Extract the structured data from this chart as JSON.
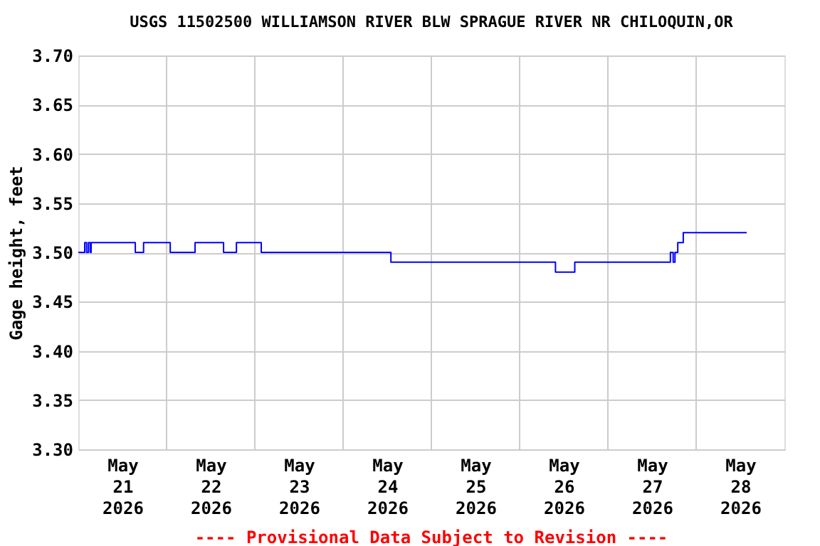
{
  "chart_data": {
    "type": "step",
    "title": "USGS 11502500 WILLIAMSON RIVER BLW SPRAGUE RIVER NR CHILOQUIN,OR",
    "ylabel": "Gage height, feet",
    "annotations": [
      "---- Provisional Data Subject to Revision ----"
    ],
    "x": [
      "2026-05-21T00:00",
      "2026-05-21T01:45",
      "2026-05-21T02:15",
      "2026-05-21T02:45",
      "2026-05-21T03:15",
      "2026-05-21T03:30",
      "2026-05-21T15:30",
      "2026-05-21T17:45",
      "2026-05-22T01:00",
      "2026-05-22T07:45",
      "2026-05-22T15:30",
      "2026-05-22T19:00",
      "2026-05-23T01:45",
      "2026-05-24T13:00",
      "2026-05-26T09:45",
      "2026-05-26T15:00",
      "2026-05-27T17:00",
      "2026-05-27T17:45",
      "2026-05-27T18:15",
      "2026-05-27T19:00",
      "2026-05-27T20:30",
      "2026-05-28T13:45"
    ],
    "series": [
      {
        "color": "#0000ff",
        "values": [
          3.5,
          3.51,
          3.5,
          3.51,
          3.5,
          3.51,
          3.5,
          3.51,
          3.5,
          3.51,
          3.5,
          3.51,
          3.5,
          3.49,
          3.48,
          3.49,
          3.5,
          3.49,
          3.5,
          3.51,
          3.52,
          3.52
        ]
      }
    ],
    "xlim": [
      "2026-05-21T00:00",
      "2026-05-29T00:00"
    ],
    "xticks": [
      {
        "value": "2026-05-21T12:00",
        "label": "May\n21\n2026"
      },
      {
        "value": "2026-05-22T12:00",
        "label": "May\n22\n2026"
      },
      {
        "value": "2026-05-23T12:00",
        "label": "May\n23\n2026"
      },
      {
        "value": "2026-05-24T12:00",
        "label": "May\n24\n2026"
      },
      {
        "value": "2026-05-25T12:00",
        "label": "May\n25\n2026"
      },
      {
        "value": "2026-05-26T12:00",
        "label": "May\n26\n2026"
      },
      {
        "value": "2026-05-27T12:00",
        "label": "May\n27\n2026"
      },
      {
        "value": "2026-05-28T12:00",
        "label": "May\n28\n2026"
      },
      {
        "value": "2026-05-22T00:00",
        "label": null
      },
      {
        "value": "2026-05-23T00:00",
        "label": null
      },
      {
        "value": "2026-05-24T00:00",
        "label": null
      },
      {
        "value": "2026-05-25T00:00",
        "label": null
      },
      {
        "value": "2026-05-26T00:00",
        "label": null
      },
      {
        "value": "2026-05-27T00:00",
        "label": null
      },
      {
        "value": "2026-05-28T00:00",
        "label": null
      }
    ],
    "ylim": [
      3.3,
      3.7
    ],
    "yticks": [
      {
        "value": 3.3,
        "label": "3.30"
      },
      {
        "value": 3.35,
        "label": "3.35"
      },
      {
        "value": 3.4,
        "label": "3.40"
      },
      {
        "value": 3.45,
        "label": "3.45"
      },
      {
        "value": 3.5,
        "label": "3.50"
      },
      {
        "value": 3.55,
        "label": "3.55"
      },
      {
        "value": 3.6,
        "label": "3.60"
      },
      {
        "value": 3.65,
        "label": "3.65"
      },
      {
        "value": 3.7,
        "label": "3.70"
      }
    ],
    "grid": true,
    "marker": "none",
    "line_style": "solid"
  }
}
